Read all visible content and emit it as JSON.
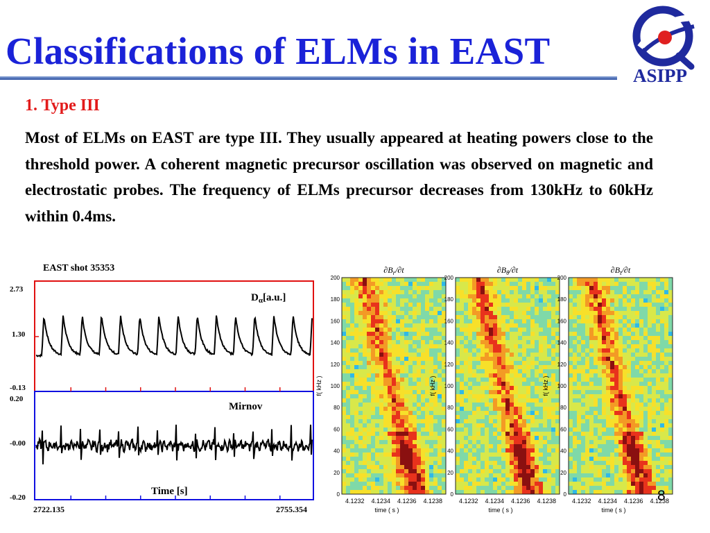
{
  "slide": {
    "title": "Classifications of ELMs in EAST",
    "logo_text": "ASIPP",
    "section_heading": "1.  Type III",
    "paragraph": "Most of ELMs on EAST are type III. They usually appeared at heating powers close to the threshold power. A coherent magnetic precursor oscillation was observed on magnetic and electrostatic probes. The frequency of ELMs precursor decreases from 130kHz to 60kHz within 0.4ms.",
    "page_number": "8"
  },
  "colors": {
    "title": "#1a22d8",
    "section": "#e21b1b",
    "top_panel_border": "#e01010",
    "bottom_panel_border": "#1010e0"
  },
  "chart_data": [
    {
      "type": "line",
      "title": "EAST shot 35353",
      "panels": [
        {
          "name": "Dα[a.u.]",
          "name_main": "D",
          "name_sub": "α",
          "name_suffix": "[a.u.]",
          "yticks": [
            "2.73",
            "1.30",
            "-0.13"
          ],
          "ylim": [
            -0.13,
            2.73
          ],
          "baseline": 0.8,
          "spike_peak": 1.85,
          "spike_count": 14
        },
        {
          "name": "Mirnov",
          "yticks": [
            "0.20",
            "-0.00",
            "-0.20"
          ],
          "ylim": [
            -0.2,
            0.2
          ],
          "baseline": 0.0,
          "spike_count": 14,
          "xlabel": "Time [s]"
        }
      ],
      "xticks": [
        "2722.135",
        "2755.354"
      ],
      "xlim": [
        2722.135,
        2755.354
      ]
    },
    {
      "type": "heatmap",
      "panels": [
        {
          "title": "∂B_r/∂t",
          "title_main": "∂B",
          "title_sub": "r",
          "title_suffix": "/∂t"
        },
        {
          "title": "∂B_θ/∂t",
          "title_main": "∂B",
          "title_sub": "θ",
          "title_suffix": "/∂t"
        },
        {
          "title": "∂B_t/∂t",
          "title_main": "∂B",
          "title_sub": "t",
          "title_suffix": "/∂t"
        }
      ],
      "ylabel": "f( kHz )",
      "xlabel": "time ( s )",
      "yticks": [
        "200",
        "180",
        "160",
        "140",
        "120",
        "100",
        "80",
        "60",
        "40",
        "20",
        "0"
      ],
      "ylim": [
        0,
        200
      ],
      "xticks": [
        "4.1232",
        "4.1234",
        "4.1236",
        "4.1238"
      ],
      "xlim": [
        4.1231,
        4.1239
      ],
      "precursor_start_khz": 130,
      "precursor_end_khz": 60
    }
  ]
}
